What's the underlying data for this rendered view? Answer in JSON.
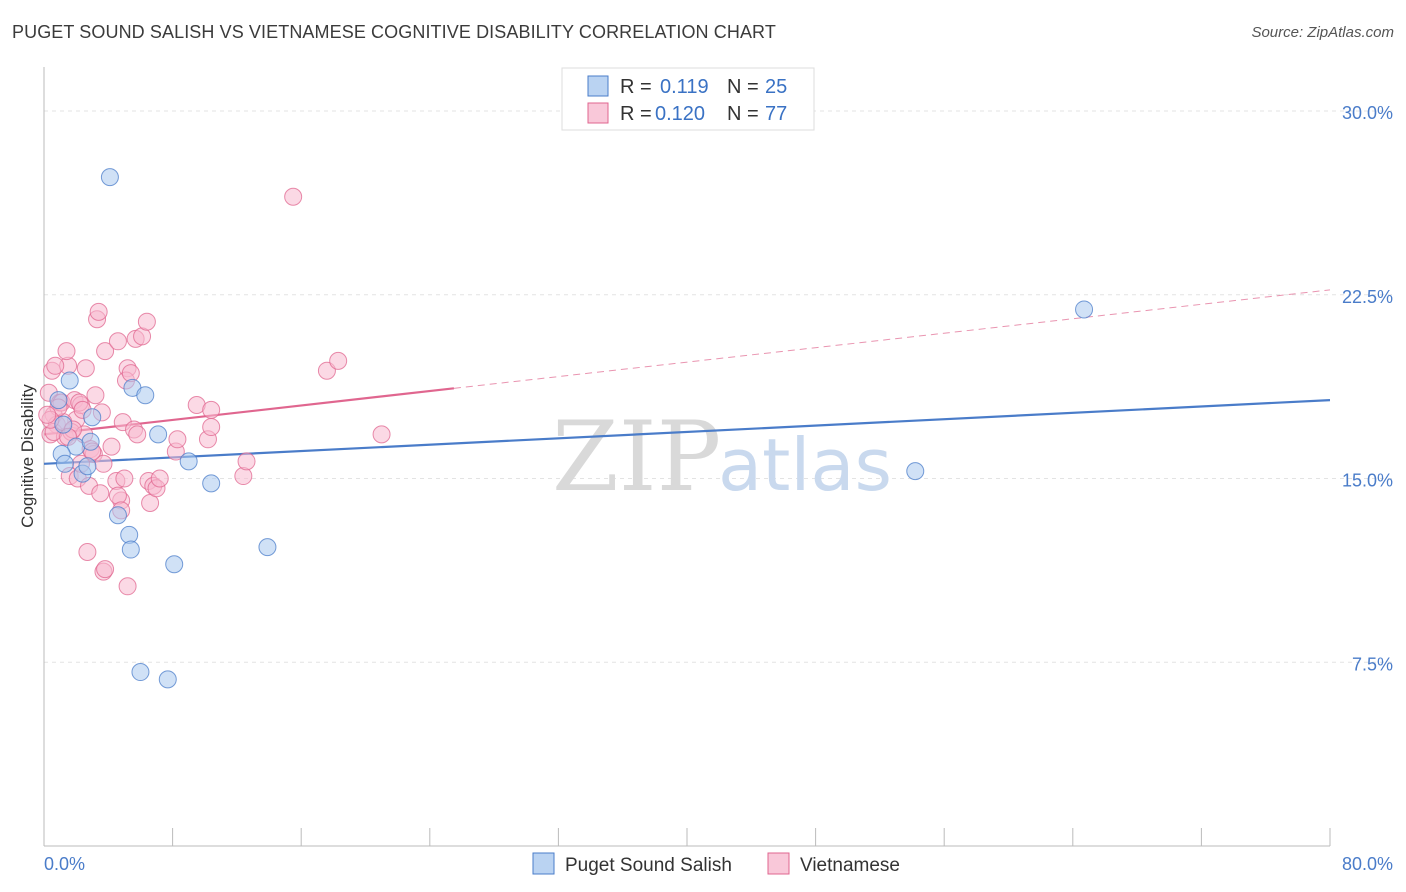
{
  "title": "PUGET SOUND SALISH VS VIETNAMESE COGNITIVE DISABILITY CORRELATION CHART",
  "source": "Source: ZipAtlas.com",
  "watermark": {
    "zip": "ZIP",
    "atlas": "atlas"
  },
  "chart_data": {
    "type": "scatter",
    "title": "PUGET SOUND SALISH VS VIETNAMESE COGNITIVE DISABILITY CORRELATION CHART",
    "xlabel": "",
    "ylabel": "Cognitive Disability",
    "xlim": [
      0,
      80
    ],
    "ylim": [
      0,
      32
    ],
    "x_tick_labels": {
      "min": "0.0%",
      "max": "80.0%"
    },
    "y_ticks": [
      {
        "value": 7.5,
        "label": "7.5%"
      },
      {
        "value": 15.0,
        "label": "15.0%"
      },
      {
        "value": 22.5,
        "label": "22.5%"
      },
      {
        "value": 30.0,
        "label": "30.0%"
      }
    ],
    "legend": {
      "r_label": "R =",
      "n_label": "N =",
      "entries": [
        {
          "name": "Puget Sound Salish",
          "r": "0.119",
          "n": "25"
        },
        {
          "name": "Vietnamese",
          "r": "0.120",
          "n": "77"
        }
      ]
    },
    "series": [
      {
        "name": "Puget Sound Salish",
        "color": "#4a7cc9",
        "fill": "#a9c8ef",
        "trend": {
          "x0": 0,
          "y0": 15.6,
          "x1": 80,
          "y1": 18.2,
          "solid_to": 80
        },
        "points": [
          [
            4.1,
            27.3
          ],
          [
            0.9,
            18.2
          ],
          [
            1.6,
            19.0
          ],
          [
            1.2,
            17.2
          ],
          [
            3.0,
            17.5
          ],
          [
            2.0,
            16.3
          ],
          [
            2.9,
            16.5
          ],
          [
            1.1,
            16.0
          ],
          [
            5.5,
            18.7
          ],
          [
            6.3,
            18.4
          ],
          [
            7.1,
            16.8
          ],
          [
            1.3,
            15.6
          ],
          [
            2.4,
            15.2
          ],
          [
            2.7,
            15.5
          ],
          [
            9.0,
            15.7
          ],
          [
            10.4,
            14.8
          ],
          [
            4.6,
            13.5
          ],
          [
            5.3,
            12.7
          ],
          [
            5.4,
            12.1
          ],
          [
            8.1,
            11.5
          ],
          [
            13.9,
            12.2
          ],
          [
            6.0,
            7.1
          ],
          [
            7.7,
            6.8
          ],
          [
            54.2,
            15.3
          ],
          [
            64.7,
            21.9
          ]
        ]
      },
      {
        "name": "Vietnamese",
        "color": "#e0668f",
        "fill": "#f7bad0",
        "trend": {
          "x0": 0,
          "y0": 16.8,
          "x1": 80,
          "y1": 22.7,
          "solid_to": 25.5
        },
        "points": [
          [
            0.3,
            18.5
          ],
          [
            0.5,
            19.4
          ],
          [
            0.6,
            17.6
          ],
          [
            0.8,
            17.2
          ],
          [
            0.4,
            16.8
          ],
          [
            1.0,
            18.1
          ],
          [
            1.3,
            16.7
          ],
          [
            1.1,
            18.1
          ],
          [
            1.5,
            19.6
          ],
          [
            1.4,
            20.2
          ],
          [
            1.9,
            18.2
          ],
          [
            2.0,
            17.4
          ],
          [
            1.7,
            16.9
          ],
          [
            2.3,
            18.0
          ],
          [
            2.6,
            19.5
          ],
          [
            2.5,
            16.8
          ],
          [
            2.9,
            16.2
          ],
          [
            3.2,
            18.4
          ],
          [
            3.6,
            17.7
          ],
          [
            3.1,
            16.0
          ],
          [
            3.3,
            21.5
          ],
          [
            3.4,
            21.8
          ],
          [
            3.8,
            20.2
          ],
          [
            4.6,
            20.6
          ],
          [
            4.9,
            17.3
          ],
          [
            5.2,
            19.5
          ],
          [
            5.1,
            19.0
          ],
          [
            5.4,
            19.3
          ],
          [
            5.6,
            17.0
          ],
          [
            5.8,
            16.8
          ],
          [
            5.7,
            20.7
          ],
          [
            6.1,
            20.8
          ],
          [
            6.4,
            21.4
          ],
          [
            1.6,
            15.1
          ],
          [
            2.1,
            15.0
          ],
          [
            2.3,
            15.6
          ],
          [
            2.8,
            14.7
          ],
          [
            3.5,
            14.4
          ],
          [
            3.7,
            15.6
          ],
          [
            4.5,
            14.9
          ],
          [
            4.2,
            16.3
          ],
          [
            4.8,
            14.1
          ],
          [
            4.6,
            14.3
          ],
          [
            5.0,
            15.0
          ],
          [
            6.5,
            14.9
          ],
          [
            6.8,
            14.7
          ],
          [
            6.6,
            14.0
          ],
          [
            7.0,
            14.6
          ],
          [
            7.2,
            15.0
          ],
          [
            4.8,
            13.7
          ],
          [
            2.7,
            12.0
          ],
          [
            3.7,
            11.2
          ],
          [
            3.8,
            11.3
          ],
          [
            5.2,
            10.6
          ],
          [
            8.2,
            16.1
          ],
          [
            8.3,
            16.6
          ],
          [
            9.5,
            18.0
          ],
          [
            10.2,
            16.6
          ],
          [
            10.4,
            17.1
          ],
          [
            10.4,
            17.8
          ],
          [
            12.4,
            15.1
          ],
          [
            12.6,
            15.7
          ],
          [
            15.5,
            26.5
          ],
          [
            17.6,
            19.4
          ],
          [
            18.3,
            19.8
          ],
          [
            21.0,
            16.8
          ],
          [
            0.6,
            16.9
          ],
          [
            1.2,
            17.3
          ],
          [
            1.8,
            17.0
          ],
          [
            2.2,
            18.1
          ],
          [
            0.9,
            17.9
          ],
          [
            0.4,
            17.4
          ],
          [
            1.5,
            16.7
          ],
          [
            2.4,
            17.8
          ],
          [
            3.0,
            16.1
          ],
          [
            0.7,
            19.6
          ],
          [
            0.2,
            17.6
          ]
        ]
      }
    ]
  }
}
